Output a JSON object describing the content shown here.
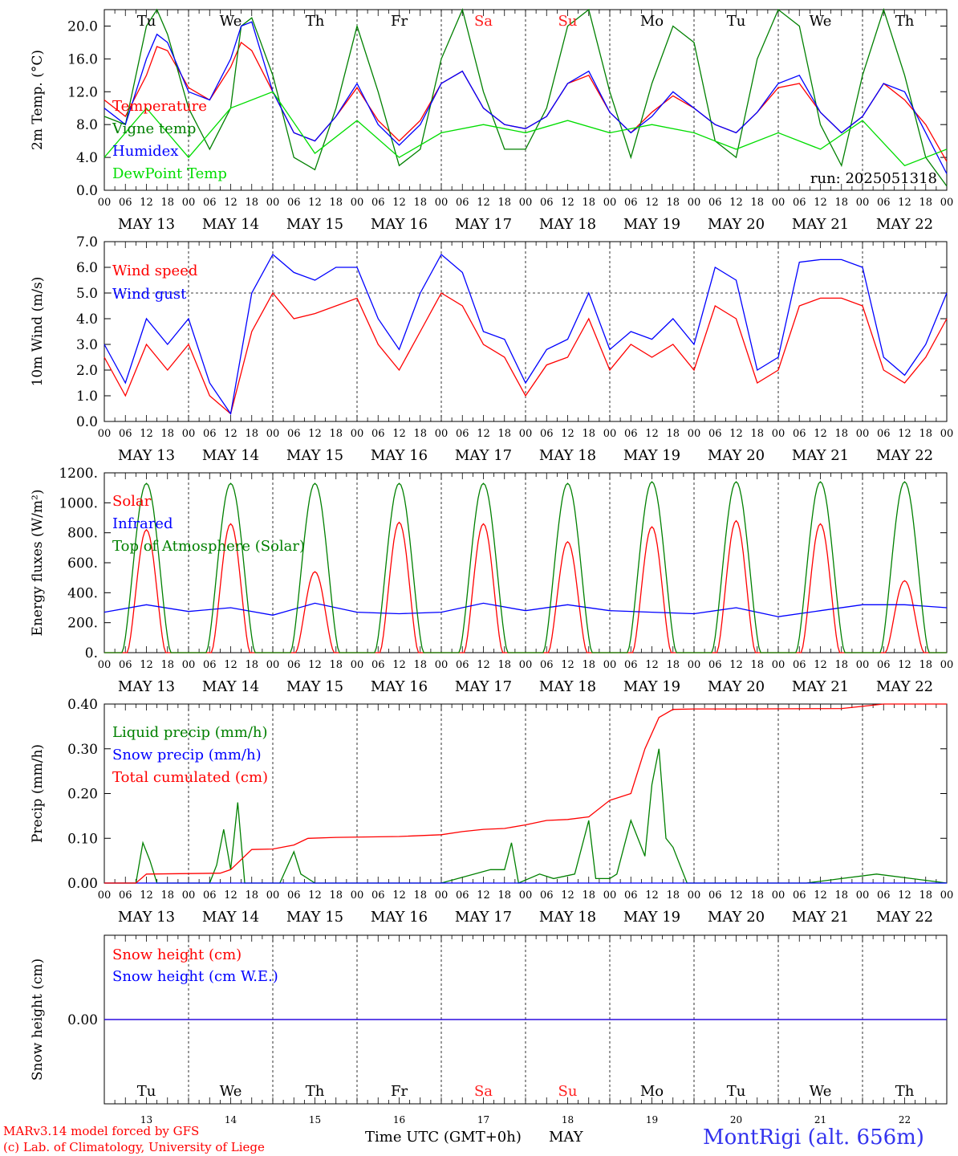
{
  "run_label": "run: 2025051318",
  "x_axis": {
    "hour_ticks": [
      "00",
      "06",
      "12",
      "18"
    ],
    "date_labels": [
      "MAY 13",
      "MAY 14",
      "MAY 15",
      "MAY 16",
      "MAY 17",
      "MAY 18",
      "MAY 19",
      "MAY 20",
      "MAY 21",
      "MAY 22"
    ],
    "weekdays": [
      "Tu",
      "We",
      "Th",
      "Fr",
      "Sa",
      "Su",
      "Mo",
      "Tu",
      "We",
      "Th"
    ],
    "weekend_color": "#ff2020",
    "weekend_indices": [
      4,
      5
    ],
    "day_numbers": [
      "13",
      "14",
      "15",
      "16",
      "17",
      "18",
      "19",
      "20",
      "21",
      "22"
    ],
    "time_label": "Time UTC (GMT+0h)",
    "month_label": "MAY"
  },
  "footer": {
    "model": "MARv3.14 model forced by GFS",
    "lab": "(c) Lab. of Climatology, University of Liege",
    "station": "MontRigi (alt. 656m)"
  },
  "colors": {
    "red": "#ff0000",
    "green": "#008000",
    "blue": "#0000ff",
    "lightgreen": "#00dd00"
  },
  "chart_data": [
    {
      "type": "line",
      "ylabel": "2m Temp. (°C)",
      "ylim": [
        0,
        22
      ],
      "yticks": [
        "0.0",
        "4.0",
        "8.0",
        "12.0",
        "16.0",
        "20.0"
      ],
      "series": [
        {
          "name": "Temperature",
          "color": "#ff0000",
          "x": [
            0,
            6,
            12,
            15,
            18,
            24,
            30,
            36,
            39,
            42,
            48,
            54,
            60,
            66,
            72,
            78,
            84,
            90,
            96,
            102,
            108,
            114,
            120,
            126,
            132,
            138,
            144,
            150,
            156,
            162,
            168,
            174,
            180,
            186,
            192,
            198,
            204,
            210,
            216,
            222,
            228,
            234,
            240
          ],
          "values": [
            11,
            9,
            14,
            17.5,
            17,
            12.5,
            11,
            15,
            18,
            17,
            12,
            7,
            6,
            9,
            12.5,
            8.5,
            6,
            8.5,
            13,
            14.5,
            10,
            8,
            7.5,
            9,
            13,
            14,
            9.5,
            7,
            9.5,
            11.5,
            10,
            8,
            7,
            9.5,
            12.5,
            13,
            9.5,
            7,
            9,
            13,
            11,
            8,
            3.5
          ]
        },
        {
          "name": "Vigne temp",
          "color": "#008000",
          "x": [
            0,
            6,
            12,
            15,
            18,
            24,
            30,
            36,
            39,
            42,
            48,
            54,
            60,
            66,
            72,
            78,
            84,
            90,
            96,
            102,
            108,
            114,
            120,
            126,
            132,
            138,
            144,
            150,
            156,
            162,
            168,
            174,
            180,
            186,
            192,
            198,
            204,
            210,
            216,
            222,
            228,
            234,
            240
          ],
          "values": [
            9,
            8,
            20,
            22,
            19,
            10,
            5,
            10,
            20,
            21,
            14,
            4,
            2.5,
            10,
            20,
            12,
            3,
            5,
            16,
            22,
            12,
            5,
            5,
            10,
            20,
            22,
            12,
            4,
            13,
            20,
            18,
            6,
            4,
            16,
            22,
            20,
            8,
            3,
            14,
            22,
            14,
            4,
            0.5
          ]
        },
        {
          "name": "Humidex",
          "color": "#0000ff",
          "x": [
            0,
            6,
            12,
            15,
            18,
            24,
            30,
            36,
            39,
            42,
            48,
            54,
            60,
            66,
            72,
            78,
            84,
            90,
            96,
            102,
            108,
            114,
            120,
            126,
            132,
            138,
            144,
            150,
            156,
            162,
            168,
            174,
            180,
            186,
            192,
            198,
            204,
            210,
            216,
            222,
            228,
            234,
            240
          ],
          "values": [
            10,
            8,
            16,
            19,
            18,
            12,
            11,
            16,
            20,
            20.5,
            12,
            7,
            6,
            9,
            13,
            8,
            5.5,
            8,
            13,
            14.5,
            10,
            8,
            7.5,
            9,
            13,
            14.5,
            9.5,
            7,
            9,
            12,
            10,
            8,
            7,
            9.5,
            13,
            14,
            9.5,
            7,
            9,
            13,
            12,
            7,
            2
          ]
        },
        {
          "name": "DewPoint Temp",
          "color": "#00dd00",
          "x": [
            0,
            12,
            24,
            36,
            48,
            60,
            72,
            84,
            96,
            108,
            120,
            132,
            144,
            156,
            168,
            180,
            192,
            204,
            216,
            228,
            240
          ],
          "values": [
            4,
            10,
            4,
            10,
            12,
            4.5,
            8.5,
            4,
            7,
            8,
            7,
            8.5,
            7,
            8,
            7,
            5,
            7,
            5,
            8.5,
            3,
            5
          ]
        }
      ]
    },
    {
      "type": "line",
      "ylabel": "10m Wind (m/s)",
      "ylim": [
        0,
        7
      ],
      "yticks": [
        "0.0",
        "1.0",
        "2.0",
        "3.0",
        "4.0",
        "5.0",
        "6.0",
        "7.0"
      ],
      "reference_line": 5.0,
      "series": [
        {
          "name": "Wind speed",
          "color": "#ff0000",
          "x": [
            0,
            6,
            12,
            18,
            24,
            30,
            36,
            42,
            48,
            54,
            60,
            66,
            72,
            78,
            84,
            90,
            96,
            102,
            108,
            114,
            120,
            126,
            132,
            138,
            144,
            150,
            156,
            162,
            168,
            174,
            180,
            186,
            192,
            198,
            204,
            210,
            216,
            222,
            228,
            234,
            240
          ],
          "values": [
            2.5,
            1,
            3,
            2,
            3,
            1,
            0.3,
            3.5,
            5,
            4,
            4.2,
            4.5,
            4.8,
            3,
            2,
            3.5,
            5,
            4.5,
            3,
            2.5,
            1,
            2.2,
            2.5,
            4,
            2,
            3,
            2.5,
            3,
            2,
            4.5,
            4,
            1.5,
            2,
            4.5,
            4.8,
            4.8,
            4.5,
            2,
            1.5,
            2.5,
            4
          ]
        },
        {
          "name": "Wind gust",
          "color": "#0000ff",
          "x": [
            0,
            6,
            12,
            18,
            24,
            30,
            36,
            42,
            48,
            54,
            60,
            66,
            72,
            78,
            84,
            90,
            96,
            102,
            108,
            114,
            120,
            126,
            132,
            138,
            144,
            150,
            156,
            162,
            168,
            174,
            180,
            186,
            192,
            198,
            204,
            210,
            216,
            222,
            228,
            234,
            240
          ],
          "values": [
            3,
            1.5,
            4,
            3,
            4,
            1.5,
            0.3,
            5,
            6.5,
            5.8,
            5.5,
            6,
            6,
            4,
            2.8,
            5,
            6.5,
            5.8,
            3.5,
            3.2,
            1.5,
            2.8,
            3.2,
            5,
            2.8,
            3.5,
            3.2,
            4,
            3,
            6,
            5.5,
            2,
            2.5,
            6.2,
            6.3,
            6.3,
            6,
            2.5,
            1.8,
            3,
            5
          ]
        }
      ]
    },
    {
      "type": "line",
      "ylabel": "Energy fluxes (W/m²)",
      "ylim": [
        0,
        1200
      ],
      "yticks": [
        "0.",
        "200.",
        "400.",
        "600.",
        "800.",
        "1000.",
        "1200."
      ],
      "series": [
        {
          "name": "Solar",
          "color": "#ff0000",
          "peak_hours": [
            12,
            36,
            60,
            84,
            108,
            132,
            156,
            180,
            204,
            228
          ],
          "peaks": [
            820,
            860,
            540,
            870,
            860,
            740,
            840,
            880,
            860,
            480
          ]
        },
        {
          "name": "Infrared",
          "color": "#0000ff",
          "x": [
            0,
            12,
            24,
            36,
            48,
            60,
            72,
            84,
            96,
            108,
            120,
            132,
            144,
            156,
            168,
            180,
            192,
            204,
            216,
            228,
            240
          ],
          "values": [
            270,
            320,
            275,
            300,
            250,
            330,
            270,
            260,
            270,
            330,
            280,
            320,
            280,
            270,
            260,
            300,
            240,
            280,
            320,
            320,
            300
          ]
        },
        {
          "name": "Top of Atmosphere (Solar)",
          "color": "#008000",
          "peak_hours": [
            12,
            36,
            60,
            84,
            108,
            132,
            156,
            180,
            204,
            228
          ],
          "peaks": [
            1130,
            1130,
            1130,
            1130,
            1130,
            1130,
            1140,
            1140,
            1140,
            1140
          ]
        }
      ]
    },
    {
      "type": "line",
      "ylabel": "Precip (mm/h)",
      "ylim": [
        0,
        0.4
      ],
      "yticks": [
        "0.00",
        "0.10",
        "0.20",
        "0.30",
        "0.40"
      ],
      "series": [
        {
          "name": "Liquid precip (mm/h)",
          "color": "#008000",
          "x": [
            0,
            9,
            11,
            13,
            15,
            30,
            32,
            34,
            36,
            38,
            40,
            50,
            54,
            56,
            60,
            66,
            96,
            110,
            114,
            116,
            118,
            124,
            128,
            134,
            138,
            140,
            144,
            146,
            150,
            154,
            156,
            158,
            160,
            162,
            166,
            170,
            174,
            180,
            200,
            210,
            220,
            240
          ],
          "values": [
            0,
            0,
            0.09,
            0.05,
            0,
            0,
            0.04,
            0.12,
            0.03,
            0.18,
            0,
            0,
            0.07,
            0.02,
            0,
            0,
            0,
            0.03,
            0.03,
            0.09,
            0,
            0.02,
            0.01,
            0.02,
            0.14,
            0.01,
            0.01,
            0.02,
            0.14,
            0.06,
            0.22,
            0.3,
            0.1,
            0.08,
            0,
            0,
            0,
            0,
            0,
            0.01,
            0.02,
            0
          ]
        },
        {
          "name": "Snow precip (mm/h)",
          "color": "#0000ff",
          "x": [
            0,
            240
          ],
          "values": [
            0,
            0
          ]
        },
        {
          "name": "Total cumulated (cm)",
          "color": "#ff0000",
          "x": [
            0,
            9,
            12,
            33,
            36,
            42,
            48,
            54,
            58,
            66,
            84,
            96,
            102,
            108,
            114,
            120,
            126,
            132,
            138,
            144,
            150,
            154,
            158,
            162,
            168,
            180,
            210,
            222,
            240
          ],
          "values": [
            0,
            0,
            0.02,
            0.022,
            0.03,
            0.075,
            0.076,
            0.085,
            0.1,
            0.102,
            0.104,
            0.108,
            0.115,
            0.12,
            0.122,
            0.13,
            0.14,
            0.142,
            0.148,
            0.185,
            0.2,
            0.3,
            0.37,
            0.388,
            0.389,
            0.389,
            0.39,
            0.4,
            0.4
          ]
        }
      ]
    },
    {
      "type": "line",
      "ylabel": "Snow height (cm)",
      "yticks": [
        "0.00"
      ],
      "series": [
        {
          "name": "Snow height (cm)",
          "color": "#ff0000",
          "x": [
            0,
            240
          ],
          "values": [
            0,
            0
          ]
        },
        {
          "name": "Snow height (cm W.E.)",
          "color": "#0000ff",
          "x": [
            0,
            240
          ],
          "values": [
            0,
            0
          ]
        }
      ]
    }
  ]
}
